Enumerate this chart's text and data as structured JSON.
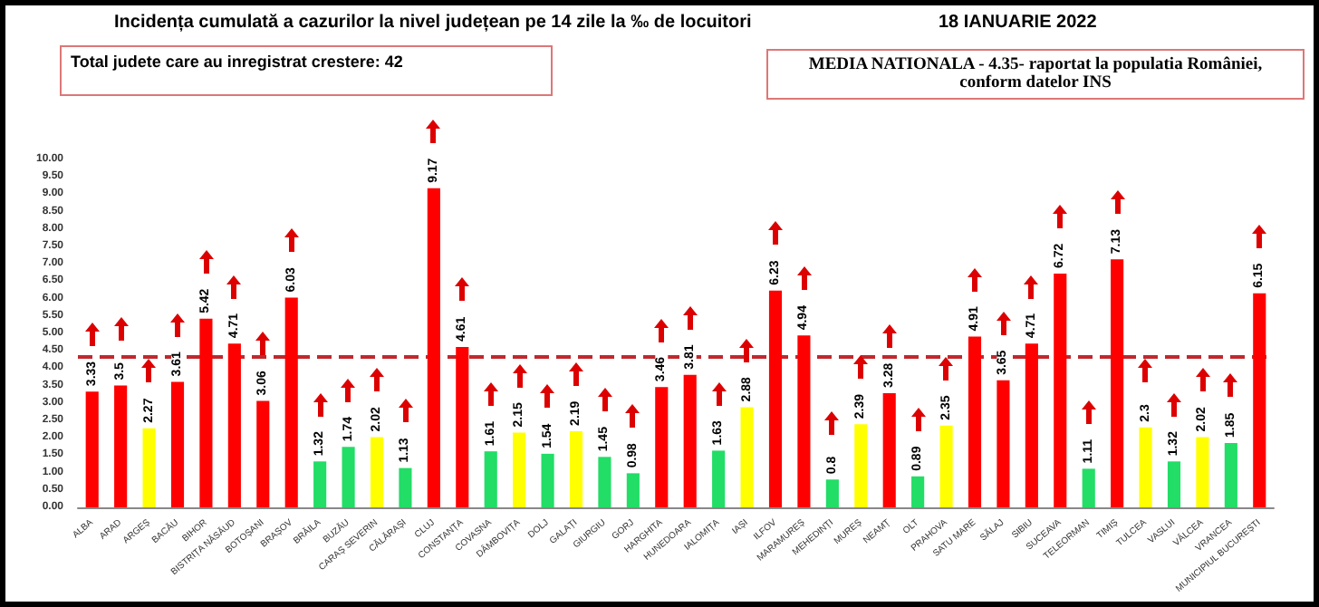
{
  "chart_data": {
    "type": "bar",
    "title": "Incidența cumulată a cazurilor la nivel județean pe 14 zile la ‰ de locuitori",
    "subtitle": "18 IANUARIE 2022",
    "annotations": [
      "Total judete care au inregistrat crestere: 42",
      "MEDIA NATIONALA - 4.35-  raportat la populatia României, conform datelor INS"
    ],
    "categories": [
      "ALBA",
      "ARAD",
      "ARGEȘ",
      "BACĂU",
      "BIHOR",
      "BISTRIȚA NĂSĂUD",
      "BOTOȘANI",
      "BRAȘOV",
      "BRĂILA",
      "BUZĂU",
      "CARAȘ SEVERIN",
      "CĂLĂRAȘI",
      "CLUJ",
      "CONSTANȚA",
      "COVASNA",
      "DÂMBOVIȚA",
      "DOLJ",
      "GALAȚI",
      "GIURGIU",
      "GORJ",
      "HARGHITA",
      "HUNEDOARA",
      "IALOMIȚA",
      "IAȘI",
      "ILFOV",
      "MARAMUREȘ",
      "MEHEDINȚI",
      "MUREȘ",
      "NEAMȚ",
      "OLT",
      "PRAHOVA",
      "SATU MARE",
      "SĂLAJ",
      "SIBIU",
      "SUCEAVA",
      "TELEORMAN",
      "TIMIȘ",
      "TULCEA",
      "VASLUI",
      "VÂLCEA",
      "VRANCEA",
      "MUNICIPIUL BUCUREȘTI"
    ],
    "values": [
      3.33,
      3.5,
      2.27,
      3.61,
      5.42,
      4.71,
      3.06,
      6.03,
      1.32,
      1.74,
      2.02,
      1.13,
      9.17,
      4.61,
      1.61,
      2.15,
      1.54,
      2.19,
      1.45,
      0.98,
      3.46,
      3.81,
      1.63,
      2.88,
      6.23,
      4.94,
      0.8,
      2.39,
      3.28,
      0.89,
      2.35,
      4.91,
      3.65,
      4.71,
      6.72,
      1.11,
      7.13,
      2.3,
      1.32,
      2.02,
      1.85,
      6.15
    ],
    "colors": [
      "#ff0000",
      "#ff0000",
      "#ffff00",
      "#ff0000",
      "#ff0000",
      "#ff0000",
      "#ff0000",
      "#ff0000",
      "#22dd66",
      "#22dd66",
      "#ffff00",
      "#22dd66",
      "#ff0000",
      "#ff0000",
      "#22dd66",
      "#ffff00",
      "#22dd66",
      "#ffff00",
      "#22dd66",
      "#22dd66",
      "#ff0000",
      "#ff0000",
      "#22dd66",
      "#ffff00",
      "#ff0000",
      "#ff0000",
      "#22dd66",
      "#ffff00",
      "#ff0000",
      "#22dd66",
      "#ffff00",
      "#ff0000",
      "#ff0000",
      "#ff0000",
      "#ff0000",
      "#22dd66",
      "#ff0000",
      "#ffff00",
      "#22dd66",
      "#ffff00",
      "#22dd66",
      "#ff0000"
    ],
    "data_labels": true,
    "ylim": [
      0,
      10
    ],
    "yticks": [
      {
        "value": 0,
        "label": "0.00"
      },
      {
        "value": 0.5,
        "label": "0.50"
      },
      {
        "value": 1,
        "label": "1.00"
      },
      {
        "value": 1.5,
        "label": "1.50"
      },
      {
        "value": 2,
        "label": "2.00"
      },
      {
        "value": 2.5,
        "label": "2.50"
      },
      {
        "value": 3,
        "label": "3.00"
      },
      {
        "value": 3.5,
        "label": "3.50"
      },
      {
        "value": 4,
        "label": "4.00"
      },
      {
        "value": 4.5,
        "label": "4.50"
      },
      {
        "value": 5,
        "label": "5.00"
      },
      {
        "value": 5.5,
        "label": "5.50"
      },
      {
        "value": 6,
        "label": "6.00"
      },
      {
        "value": 6.5,
        "label": "6.50"
      },
      {
        "value": 7,
        "label": "7.00"
      },
      {
        "value": 7.5,
        "label": "7.50"
      },
      {
        "value": 8,
        "label": "8.00"
      },
      {
        "value": 8.5,
        "label": "8.50"
      },
      {
        "value": 9,
        "label": "9.00"
      },
      {
        "value": 9.5,
        "label": "9.50"
      },
      {
        "value": 10,
        "label": "10.00"
      }
    ],
    "ref_lines": [
      {
        "axis": "y",
        "value": 4.35,
        "color": "#c0282d",
        "line_style": "dashed"
      }
    ]
  }
}
